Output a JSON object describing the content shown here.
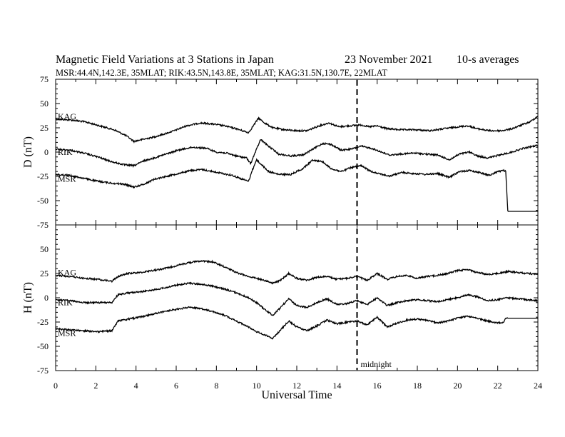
{
  "header": {
    "title": "Magnetic Field Variations at 3 Stations in Japan",
    "date": "23 November 2021",
    "averaging": "10-s averages",
    "stations_line": "MSR:44.4N,142.3E, 35MLAT;  RIK:43.5N,143.8E, 35MLAT;  KAG:31.5N,130.7E, 22MLAT"
  },
  "annotations": {
    "midnight_label": "midnight",
    "midnight_ut": 15
  },
  "chart_data": [
    {
      "type": "line",
      "ylabel": "D (nT)",
      "xlim": [
        0,
        24
      ],
      "ylim": [
        -75,
        75
      ],
      "yticks": [
        75,
        50,
        25,
        0,
        -25,
        -50,
        -75
      ],
      "xticks": [],
      "series": [
        {
          "name": "KAG",
          "x": [
            0,
            0.8,
            1.5,
            2.2,
            2.9,
            3.5,
            3.9,
            4.3,
            4.8,
            5.3,
            5.9,
            6.5,
            7.2,
            7.8,
            8.4,
            9.0,
            9.6,
            9.8,
            10.1,
            10.4,
            10.8,
            11.4,
            12.0,
            12.5,
            13.1,
            13.6,
            14.1,
            14.6,
            15.2,
            15.6,
            16.0,
            16.5,
            17.2,
            17.9,
            18.6,
            19.3,
            20.0,
            20.5,
            21.0,
            21.6,
            22.2,
            22.7,
            23.2,
            23.6,
            24.0
          ],
          "values": [
            34,
            33,
            31,
            27,
            23,
            17,
            11,
            13,
            15,
            18,
            22,
            27,
            30,
            29,
            27,
            24,
            20,
            26,
            35,
            30,
            25,
            23,
            22,
            22,
            27,
            30,
            26,
            27,
            28,
            26,
            27,
            24,
            23,
            23,
            22,
            24,
            26,
            27,
            24,
            22,
            22,
            24,
            28,
            31,
            37
          ]
        },
        {
          "name": "RIK",
          "x": [
            0,
            0.7,
            1.4,
            2.1,
            2.8,
            3.4,
            3.9,
            4.4,
            4.9,
            5.5,
            6.1,
            6.8,
            7.5,
            8.0,
            8.5,
            9.0,
            9.5,
            9.7,
            9.9,
            10.2,
            10.6,
            11.1,
            11.7,
            12.3,
            12.8,
            13.3,
            13.7,
            14.2,
            14.7,
            15.2,
            15.7,
            16.1,
            16.6,
            17.2,
            17.8,
            18.4,
            19.0,
            19.6,
            20.1,
            20.6,
            21.0,
            21.5,
            22.1,
            22.7,
            23.3,
            24.0
          ],
          "values": [
            3,
            2,
            -1,
            -5,
            -10,
            -13,
            -14,
            -9,
            -6,
            -2,
            2,
            5,
            4,
            0,
            -1,
            -4,
            -6,
            -12,
            -2,
            13,
            6,
            -2,
            -4,
            -3,
            3,
            9,
            8,
            2,
            3,
            6,
            4,
            1,
            -3,
            -2,
            -1,
            -2,
            -3,
            -8,
            -2,
            0,
            -4,
            -6,
            -3,
            0,
            4,
            7
          ]
        },
        {
          "name": "MSR",
          "x": [
            0,
            0.7,
            1.4,
            2.1,
            2.8,
            3.4,
            3.9,
            4.4,
            4.9,
            5.5,
            6.1,
            6.7,
            7.3,
            7.8,
            8.3,
            8.8,
            9.3,
            9.6,
            9.8,
            10.0,
            10.2,
            10.6,
            11.1,
            11.7,
            12.3,
            12.8,
            13.3,
            13.7,
            14.2,
            14.7,
            15.2,
            15.7,
            16.1,
            16.6,
            17.2,
            17.8,
            18.4,
            19.0,
            19.6,
            20.1,
            20.6,
            21.1,
            21.6,
            22.0,
            22.3,
            22.4,
            22.5,
            23.0,
            23.5,
            24.0
          ],
          "values": [
            -23,
            -24,
            -27,
            -30,
            -32,
            -33,
            -36,
            -33,
            -28,
            -25,
            -22,
            -19,
            -18,
            -20,
            -22,
            -24,
            -28,
            -30,
            -18,
            -8,
            -12,
            -20,
            -23,
            -23,
            -17,
            -8,
            -10,
            -17,
            -20,
            -16,
            -14,
            -20,
            -22,
            -25,
            -21,
            -22,
            -23,
            -22,
            -26,
            -20,
            -19,
            -21,
            -24,
            -20,
            -19,
            -20,
            -61,
            -61,
            -61,
            -61
          ]
        }
      ]
    },
    {
      "type": "line",
      "ylabel": "H (nT)",
      "xlabel": "Universal Time",
      "xlim": [
        0,
        24
      ],
      "ylim": [
        -75,
        75
      ],
      "yticks": [
        75,
        50,
        25,
        0,
        -25,
        -50,
        -75
      ],
      "xticks": [
        0,
        2,
        4,
        6,
        8,
        10,
        12,
        14,
        16,
        18,
        20,
        22,
        24
      ],
      "series": [
        {
          "name": "KAG",
          "x": [
            0,
            0.7,
            1.4,
            2.1,
            2.8,
            3.1,
            3.6,
            4.2,
            4.8,
            5.4,
            6.0,
            6.6,
            7.2,
            7.8,
            8.4,
            9.0,
            9.6,
            10.0,
            10.4,
            10.8,
            11.2,
            11.6,
            12.0,
            12.5,
            13.0,
            13.5,
            14.0,
            14.5,
            15.0,
            15.5,
            16.0,
            16.5,
            17.0,
            17.5,
            18.0,
            18.5,
            19.0,
            19.5,
            20.0,
            20.5,
            21.0,
            21.5,
            22.0,
            22.5,
            23.0,
            23.5,
            24.0
          ],
          "values": [
            23,
            22,
            20,
            19,
            17,
            22,
            25,
            26,
            28,
            30,
            33,
            36,
            38,
            37,
            32,
            26,
            22,
            20,
            18,
            15,
            18,
            25,
            20,
            18,
            21,
            22,
            19,
            20,
            22,
            18,
            25,
            19,
            22,
            23,
            20,
            22,
            23,
            25,
            28,
            29,
            26,
            24,
            25,
            27,
            26,
            25,
            24
          ]
        },
        {
          "name": "RIK",
          "x": [
            0,
            0.7,
            1.4,
            2.1,
            2.8,
            3.1,
            3.6,
            4.2,
            4.8,
            5.4,
            6.0,
            6.6,
            7.2,
            7.8,
            8.4,
            9.0,
            9.6,
            10.0,
            10.4,
            10.8,
            11.2,
            11.6,
            12.0,
            12.5,
            13.0,
            13.5,
            14.0,
            14.5,
            15.0,
            15.5,
            16.0,
            16.5,
            17.0,
            17.5,
            18.0,
            18.5,
            19.0,
            19.5,
            20.0,
            20.5,
            21.0,
            21.5,
            22.0,
            22.5,
            23.0,
            23.5,
            24.0
          ],
          "values": [
            -2,
            -3,
            -5,
            -5,
            -5,
            3,
            5,
            6,
            8,
            10,
            13,
            15,
            14,
            12,
            9,
            5,
            0,
            -5,
            -12,
            -18,
            -10,
            -1,
            -8,
            -10,
            -5,
            -1,
            -7,
            -6,
            -3,
            -7,
            0,
            -8,
            -5,
            -3,
            -2,
            -3,
            -4,
            -2,
            0,
            3,
            1,
            -3,
            -2,
            0,
            -1,
            -2,
            -3
          ]
        },
        {
          "name": "MSR",
          "x": [
            0,
            0.7,
            1.4,
            2.1,
            2.8,
            3.1,
            3.6,
            4.2,
            4.8,
            5.4,
            6.0,
            6.6,
            7.2,
            7.8,
            8.4,
            9.0,
            9.6,
            10.0,
            10.4,
            10.8,
            11.2,
            11.6,
            12.0,
            12.5,
            13.0,
            13.5,
            14.0,
            14.5,
            15.0,
            15.5,
            16.0,
            16.5,
            17.0,
            17.5,
            18.0,
            18.5,
            19.0,
            19.5,
            20.0,
            20.5,
            21.0,
            21.5,
            22.0,
            22.3,
            22.4,
            22.5,
            23.0,
            23.5,
            24.0
          ],
          "values": [
            -32,
            -33,
            -34,
            -35,
            -34,
            -24,
            -22,
            -20,
            -17,
            -14,
            -12,
            -10,
            -11,
            -14,
            -18,
            -24,
            -30,
            -35,
            -38,
            -42,
            -33,
            -24,
            -30,
            -34,
            -29,
            -23,
            -27,
            -25,
            -24,
            -28,
            -20,
            -30,
            -26,
            -23,
            -22,
            -23,
            -26,
            -24,
            -21,
            -19,
            -21,
            -24,
            -26,
            -25,
            -21,
            -21,
            -21,
            -21,
            -21
          ]
        }
      ]
    }
  ]
}
